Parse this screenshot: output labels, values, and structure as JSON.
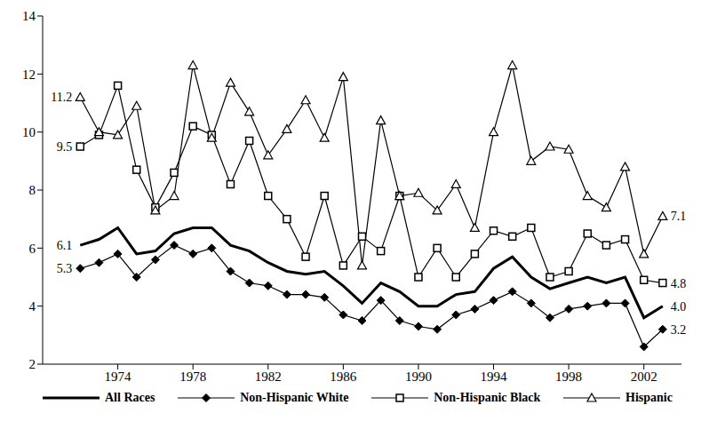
{
  "chart_data": {
    "type": "line",
    "x": [
      1972,
      1973,
      1974,
      1975,
      1976,
      1977,
      1978,
      1979,
      1980,
      1981,
      1982,
      1983,
      1984,
      1985,
      1986,
      1987,
      1988,
      1989,
      1990,
      1991,
      1992,
      1993,
      1994,
      1995,
      1996,
      1997,
      1998,
      1999,
      2000,
      2001,
      2002,
      2003
    ],
    "xlim": [
      1970,
      2004
    ],
    "xticks": [
      1974,
      1978,
      1982,
      1986,
      1990,
      1994,
      1998,
      2002
    ],
    "ylim": [
      2,
      14
    ],
    "yticks": [
      2,
      4,
      6,
      8,
      10,
      12,
      14
    ],
    "grid": false,
    "legend": "bottom",
    "series": [
      {
        "name": "All Races",
        "color": "#000000",
        "marker": "none",
        "line_style": "bold",
        "values": [
          6.1,
          6.3,
          6.7,
          5.8,
          5.9,
          6.5,
          6.7,
          6.7,
          6.1,
          5.9,
          5.5,
          5.2,
          5.1,
          5.2,
          4.7,
          4.1,
          4.8,
          4.5,
          4.0,
          4.0,
          4.4,
          4.5,
          5.3,
          5.7,
          5.0,
          4.6,
          4.8,
          5.0,
          4.8,
          5.0,
          3.6,
          4.0
        ],
        "value_labels": [
          "6.1",
          null,
          null,
          null,
          null,
          null,
          null,
          null,
          null,
          null,
          null,
          null,
          null,
          null,
          null,
          null,
          null,
          null,
          null,
          null,
          null,
          null,
          null,
          null,
          null,
          null,
          null,
          null,
          null,
          null,
          null,
          "4.0"
        ]
      },
      {
        "name": "Non-Hispanic White",
        "color": "#000000",
        "marker": "diamond",
        "line_style": "solid",
        "values": [
          5.3,
          5.5,
          5.8,
          5.0,
          5.6,
          6.1,
          5.8,
          6.0,
          5.2,
          4.8,
          4.7,
          4.4,
          4.4,
          4.3,
          3.7,
          3.5,
          4.2,
          3.5,
          3.3,
          3.2,
          3.7,
          3.9,
          4.2,
          4.5,
          4.1,
          3.6,
          3.9,
          4.0,
          4.1,
          4.1,
          2.6,
          3.2
        ],
        "value_labels": [
          "5.3",
          null,
          null,
          null,
          null,
          null,
          null,
          null,
          null,
          null,
          null,
          null,
          null,
          null,
          null,
          null,
          null,
          null,
          null,
          null,
          null,
          null,
          null,
          null,
          null,
          null,
          null,
          null,
          null,
          null,
          null,
          "3.2"
        ]
      },
      {
        "name": "Non-Hispanic Black",
        "color": "#000000",
        "marker": "open_square",
        "line_style": "solid",
        "values": [
          9.5,
          9.9,
          11.6,
          8.7,
          7.4,
          8.6,
          10.2,
          9.9,
          8.2,
          9.7,
          7.8,
          7.0,
          5.7,
          7.8,
          5.4,
          6.4,
          5.9,
          7.8,
          5.0,
          6.0,
          5.0,
          5.8,
          6.6,
          6.4,
          6.7,
          5.0,
          5.2,
          6.5,
          6.1,
          6.3,
          4.9,
          4.8
        ],
        "value_labels": [
          "9.5",
          null,
          null,
          null,
          null,
          null,
          null,
          null,
          null,
          null,
          null,
          null,
          null,
          null,
          null,
          null,
          null,
          null,
          null,
          null,
          null,
          null,
          null,
          null,
          null,
          null,
          null,
          null,
          null,
          null,
          null,
          "4.8"
        ]
      },
      {
        "name": "Hispanic",
        "color": "#000000",
        "marker": "open_triangle",
        "line_style": "solid",
        "values": [
          11.2,
          10.0,
          9.9,
          10.9,
          7.3,
          7.8,
          12.3,
          9.8,
          11.7,
          10.7,
          9.2,
          10.1,
          11.1,
          9.8,
          11.9,
          5.4,
          10.4,
          7.8,
          7.9,
          7.3,
          8.2,
          6.7,
          10.0,
          12.3,
          9.0,
          9.5,
          9.4,
          7.8,
          7.4,
          8.8,
          5.8,
          7.1
        ],
        "value_labels": [
          "11.2",
          null,
          null,
          null,
          null,
          null,
          null,
          null,
          null,
          null,
          null,
          null,
          null,
          null,
          null,
          null,
          null,
          null,
          null,
          null,
          null,
          null,
          null,
          null,
          null,
          null,
          null,
          null,
          null,
          null,
          null,
          "7.1"
        ]
      }
    ]
  }
}
